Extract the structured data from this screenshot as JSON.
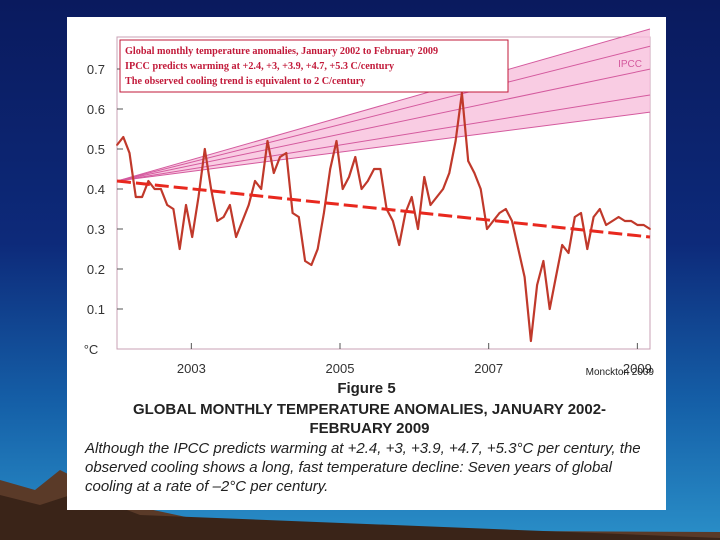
{
  "chart_data": {
    "type": "line",
    "legend": [
      "Global monthly temperature anomalies, January 2002 to February 2009",
      "IPCC predicts warming at +2.4, +3, +3.9, +4.7, +5.3 C/century",
      "The observed cooling trend is equivalent to 2 C/century"
    ],
    "band_label": "IPCC",
    "y_unit": "°C",
    "y_ticks": [
      0.1,
      0.2,
      0.3,
      0.4,
      0.5,
      0.6,
      0.7
    ],
    "x_ticks": [
      "2003",
      "2005",
      "2007",
      "2009"
    ],
    "ylim": [
      0.0,
      0.78
    ],
    "xlim": [
      2002.0,
      2009.17
    ],
    "start": 0.42,
    "ipcc_rates_per_century": [
      2.4,
      3,
      3.9,
      4.7,
      5.3
    ],
    "trend": {
      "start": 0.42,
      "end": 0.28
    },
    "series": [
      {
        "name": "Global monthly temperature anomalies",
        "values": [
          0.51,
          0.53,
          0.49,
          0.38,
          0.38,
          0.42,
          0.4,
          0.4,
          0.36,
          0.35,
          0.25,
          0.36,
          0.28,
          0.38,
          0.5,
          0.4,
          0.32,
          0.33,
          0.36,
          0.28,
          0.32,
          0.36,
          0.42,
          0.4,
          0.52,
          0.44,
          0.48,
          0.49,
          0.34,
          0.33,
          0.22,
          0.21,
          0.25,
          0.34,
          0.45,
          0.52,
          0.4,
          0.43,
          0.48,
          0.4,
          0.42,
          0.45,
          0.45,
          0.35,
          0.32,
          0.26,
          0.34,
          0.38,
          0.3,
          0.43,
          0.36,
          0.38,
          0.4,
          0.44,
          0.52,
          0.64,
          0.47,
          0.44,
          0.4,
          0.3,
          0.32,
          0.34,
          0.35,
          0.32,
          0.25,
          0.18,
          0.02,
          0.16,
          0.22,
          0.1,
          0.18,
          0.26,
          0.24,
          0.33,
          0.34,
          0.25,
          0.33,
          0.35,
          0.31,
          0.32,
          0.33,
          0.32,
          0.32,
          0.31,
          0.31,
          0.3
        ]
      }
    ]
  },
  "credit": "Monckton 2009",
  "figure_number": "Figure 5",
  "figure_title": "GLOBAL MONTHLY TEMPERATURE ANOMALIES, JANUARY 2002-FEBRUARY 2009",
  "caption": "Although the IPCC predicts warming at +2.4, +3, +3.9, +4.7, +5.3°C per century, the observed cooling shows a long, fast temperature decline: Seven years of global cooling at a rate of –2°C per century.",
  "colors": {
    "line": "#c0392b",
    "trend": "#e8281e",
    "band": "#f7bfdc",
    "band_edge": "#d45a9e",
    "legend_text": "#c21a3a"
  }
}
